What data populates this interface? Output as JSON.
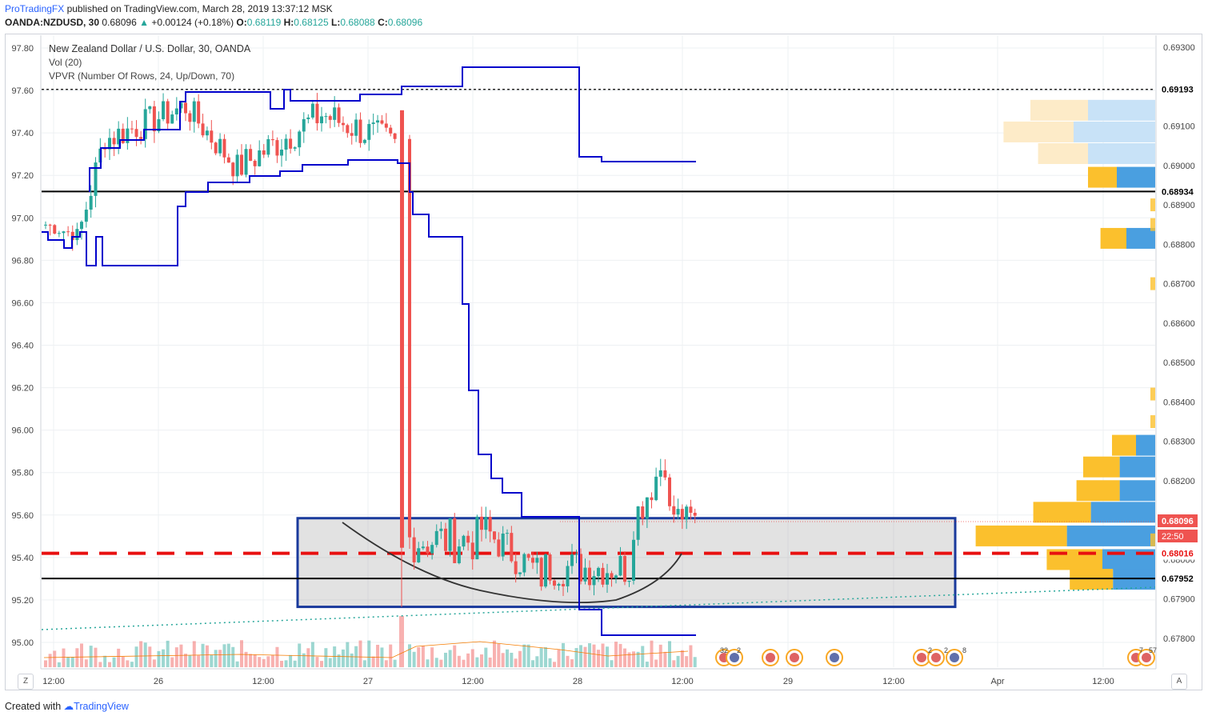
{
  "header": {
    "publisher": "ProTradingFX",
    "published_text": " published on TradingView.com, March 28, 2019 13:37:12 MSK",
    "symbol": "OANDA:NZDUSD, 30",
    "last": "0.68096",
    "change": "+0.00124 (+0.18%)",
    "o_label": "O:",
    "o_value": "0.68119",
    "h_label": "H:",
    "h_value": "0.68125",
    "l_label": "L:",
    "l_value": "0.68088",
    "c_label": "C:",
    "c_value": "0.68096"
  },
  "legend": {
    "title": "New Zealand Dollar / U.S. Dollar, 30, OANDA",
    "vol": "Vol (20)",
    "vpvr": "VPVR (Number Of Rows, 24, Up/Down, 70)"
  },
  "footer": {
    "created_with": "Created with ",
    "brand": "TradingView"
  },
  "buttons": {
    "zoom": "Z",
    "auto": "A"
  },
  "chart_data": {
    "type": "candlestick",
    "left_axis": {
      "ticks": [
        95.0,
        95.2,
        95.4,
        95.6,
        95.8,
        96.0,
        96.2,
        96.4,
        96.6,
        96.8,
        97.0,
        97.2,
        97.4,
        97.6,
        97.8
      ]
    },
    "right_axis": {
      "ticks": [
        0.678,
        0.679,
        0.68,
        0.681,
        0.682,
        0.683,
        0.684,
        0.685,
        0.686,
        0.687,
        0.688,
        0.689,
        0.69,
        0.691,
        0.692,
        0.693
      ],
      "tick_labels": [
        "0.67800",
        "0.67900",
        "0.68000",
        "0.68100",
        "0.68200",
        "0.68300",
        "0.68400",
        "0.68500",
        "0.68600",
        "0.68700",
        "0.68800",
        "0.68900",
        "0.69000",
        "0.69100",
        "0.69200",
        "0.69300"
      ]
    },
    "x_axis": {
      "labels": [
        "12:00",
        "26",
        "12:00",
        "27",
        "12:00",
        "28",
        "12:00",
        "29",
        "12:00",
        "Apr",
        "12:00"
      ]
    },
    "price_labels": [
      {
        "value": "0.69193",
        "kind": "dotted-level"
      },
      {
        "value": "0.68934",
        "kind": "support-line"
      },
      {
        "value": "0.68096",
        "kind": "last-price"
      },
      {
        "value": "22:50",
        "kind": "countdown"
      },
      {
        "value": "0.68016",
        "kind": "dashed-level"
      },
      {
        "value": "0.67952",
        "kind": "support-line"
      }
    ],
    "levels": {
      "dotted_top": 0.69193,
      "support_upper": 0.68934,
      "dashed_red": 0.68016,
      "support_lower": 0.67952,
      "box_top": 0.68105,
      "box_bottom": 0.6788
    },
    "volume_profile": [
      {
        "price": 0.69175,
        "up": 0.0,
        "down": 0.0
      },
      {
        "price": 0.6914,
        "up": 0.6,
        "down": 0.7
      },
      {
        "price": 0.69085,
        "up": 0.73,
        "down": 0.85
      },
      {
        "price": 0.6903,
        "up": 0.52,
        "down": 0.7
      },
      {
        "price": 0.6897,
        "up": 0.3,
        "down": 0.4
      },
      {
        "price": 0.68815,
        "up": 0.27,
        "down": 0.3
      },
      {
        "price": 0.6829,
        "up": 0.25,
        "down": 0.2
      },
      {
        "price": 0.68235,
        "up": 0.38,
        "down": 0.37
      },
      {
        "price": 0.68175,
        "up": 0.45,
        "down": 0.37
      },
      {
        "price": 0.6812,
        "up": 0.6,
        "down": 0.67
      },
      {
        "price": 0.6806,
        "up": 0.95,
        "down": 0.92
      },
      {
        "price": 0.68,
        "up": 0.58,
        "down": 0.55
      },
      {
        "price": 0.6795,
        "up": 0.45,
        "down": 0.44
      }
    ],
    "events": [
      "32",
      "2",
      "2",
      "2",
      "8",
      "7",
      "5",
      "7"
    ],
    "colors": {
      "up": "#26a69a",
      "down": "#ef5350",
      "vwap": "#0000cc",
      "box_border": "#1a3a9c",
      "profile_up": "#fbc02d",
      "profile_down": "#4a9fe0",
      "dashed": "#e81010"
    }
  }
}
